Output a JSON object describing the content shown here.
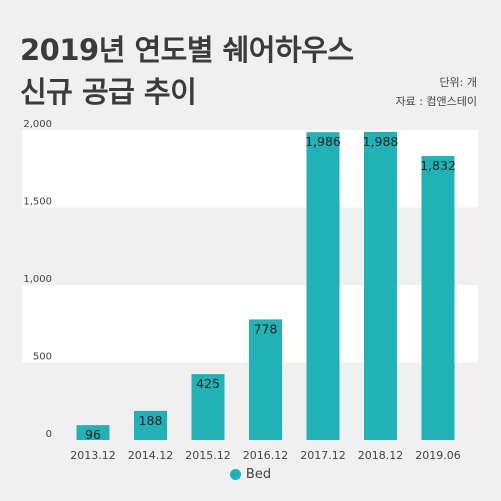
{
  "header": {
    "title_line1": "2019년 연도별 쉐어하우스",
    "title_line2": "신규 공급 추이",
    "unit": "단위: 개",
    "source": "자료 : 컴앤스테이"
  },
  "colors": {
    "bar": "#1fb3b8",
    "band_light": "#ffffff",
    "band_dark": "#f0f0f0"
  },
  "chart_data": {
    "type": "bar",
    "categories": [
      "2013.12",
      "2014.12",
      "2015.12",
      "2016.12",
      "2017.12",
      "2018.12",
      "2019.06"
    ],
    "series": [
      {
        "name": "Bed",
        "values": [
          96,
          188,
          425,
          778,
          1986,
          1988,
          1832
        ]
      }
    ],
    "value_labels": [
      "96",
      "188",
      "425",
      "778",
      "1,986",
      "1,988",
      "1,832"
    ],
    "y_ticks": [
      0,
      500,
      1000,
      1500,
      2000
    ],
    "y_tick_labels": [
      "0",
      "500",
      "1,000",
      "1,500",
      "2,000"
    ],
    "ylim": [
      0,
      2000
    ],
    "legend": {
      "position": "bottom-center",
      "labels": [
        "Bed"
      ]
    },
    "grid": false,
    "alternating_bands": true
  }
}
